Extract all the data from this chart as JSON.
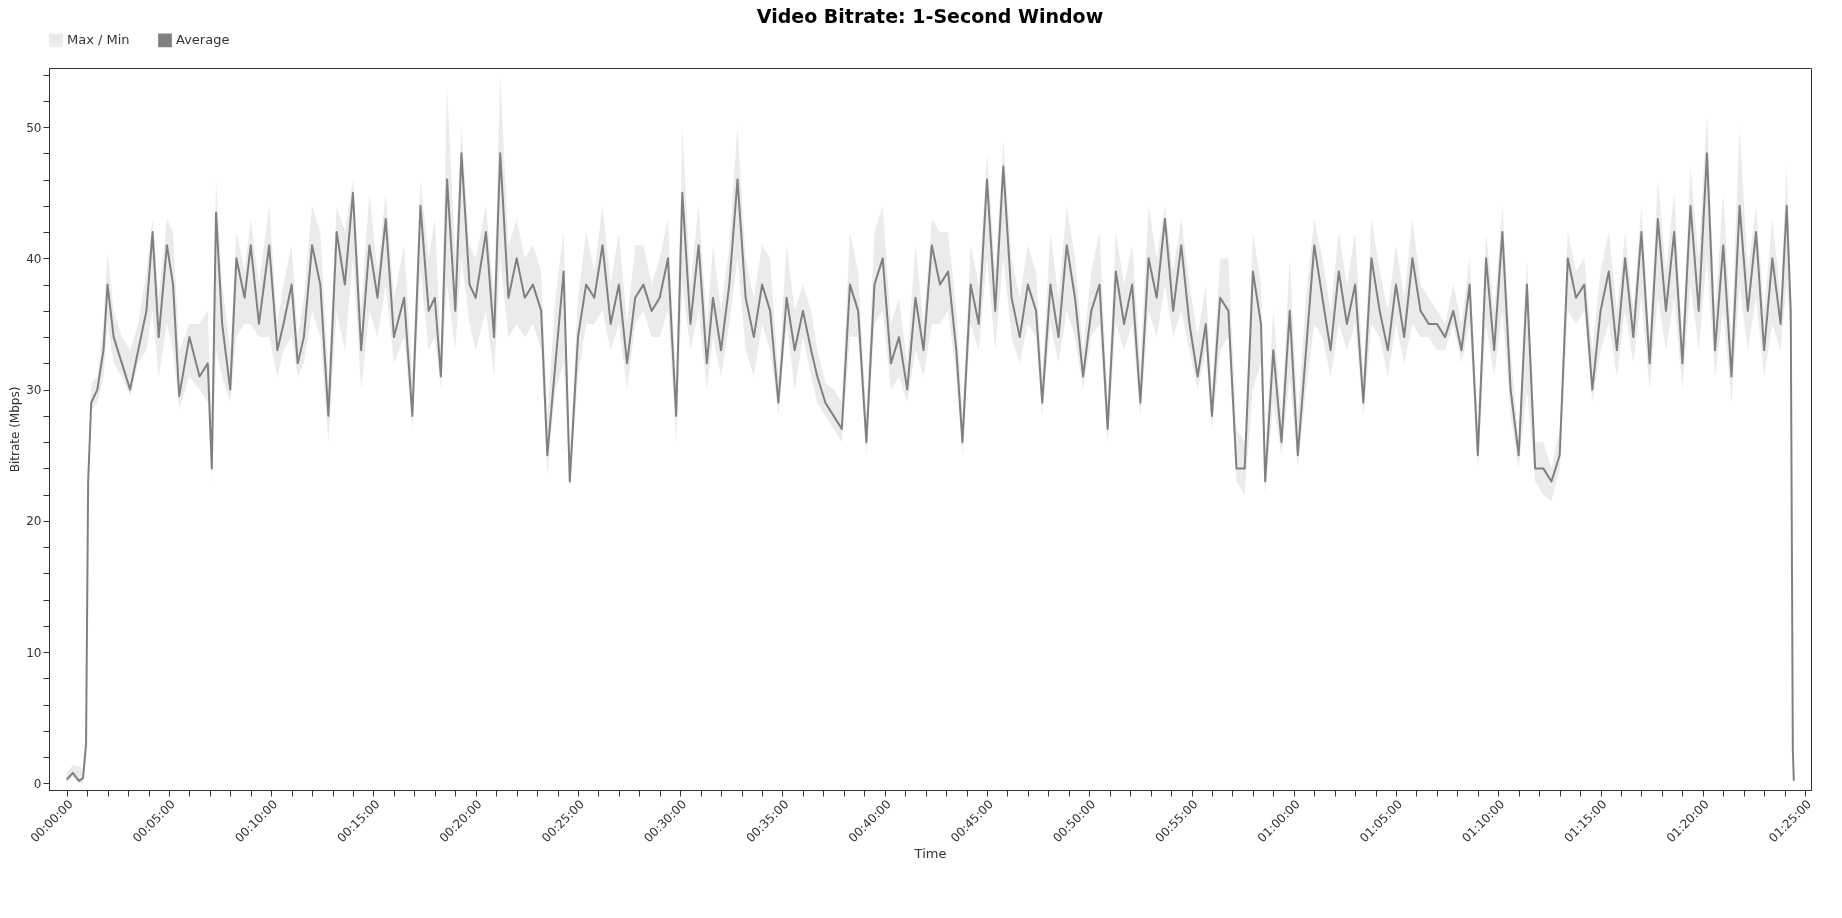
{
  "chart_data": {
    "type": "line",
    "title": "Video Bitrate: 1-Second Window",
    "xlabel": "Time",
    "ylabel": "Bitrate (Mbps)",
    "legend": "top left",
    "grid": false,
    "marker": "none",
    "line_style": "solid",
    "x": [
      0,
      0.005,
      0.01,
      0.0133,
      0.0158,
      0.0175,
      0.02,
      0.025,
      0.03,
      0.0333,
      0.0383,
      0.045,
      0.0517,
      0.0583,
      0.065,
      0.07,
      0.075,
      0.0817,
      0.0867,
      0.0917,
      0.1,
      0.1083,
      0.115,
      0.1183,
      0.1217,
      0.1267,
      0.1333,
      0.1383,
      0.145,
      0.15,
      0.1567,
      0.165,
      0.1717,
      0.1767,
      0.1833,
      0.1883,
      0.1933,
      0.2,
      0.2067,
      0.2133,
      0.22,
      0.2267,
      0.2333,
      0.24,
      0.2467,
      0.2533,
      0.26,
      0.2667,
      0.275,
      0.2817,
      0.2883,
      0.295,
      0.3,
      0.305,
      0.31,
      0.3167,
      0.3217,
      0.3283,
      0.3333,
      0.3417,
      0.3483,
      0.3533,
      0.36,
      0.3667,
      0.3733,
      0.38,
      0.3867,
      0.3917,
      0.3983,
      0.405,
      0.41,
      0.4167,
      0.4233,
      0.43,
      0.4367,
      0.4433,
      0.45,
      0.4567,
      0.4633,
      0.47,
      0.4767,
      0.4833,
      0.49,
      0.4967,
      0.5017,
      0.5083,
      0.515,
      0.5217,
      0.5267,
      0.5333,
      0.54,
      0.5467,
      0.5533,
      0.56,
      0.5667,
      0.5733,
      0.58,
      0.5867,
      0.5933,
      0.6,
      0.6067,
      0.6117,
      0.6183,
      0.625,
      0.6317,
      0.6383,
      0.645,
      0.6517,
      0.6583,
      0.665,
      0.6717,
      0.6783,
      0.685,
      0.6917,
      0.6983,
      0.705,
      0.7117,
      0.7183,
      0.725,
      0.73,
      0.7367,
      0.7433,
      0.75,
      0.7567,
      0.7633,
      0.77,
      0.7767,
      0.7833,
      0.79,
      0.795,
      0.8017,
      0.8083,
      0.815,
      0.8217,
      0.8283,
      0.835,
      0.8417,
      0.8483,
      0.855,
      0.8617,
      0.8683,
      0.875,
      0.8817,
      0.8883,
      0.895,
      0.9017,
      0.9083,
      0.915,
      0.9217,
      0.9283,
      0.9333,
      0.94,
      0.9467,
      0.9533,
      0.96,
      0.9667,
      0.9733,
      0.9767,
      0.9833,
      0.99,
      0.9967,
      1.0033,
      1.01,
      1.0167,
      1.0233,
      1.03,
      1.0367,
      1.0433,
      1.05,
      1.0567,
      1.0633,
      1.07,
      1.0767,
      1.0833,
      1.09,
      1.0967,
      1.1033,
      1.11,
      1.1167,
      1.1233,
      1.13,
      1.1367,
      1.1433,
      1.15,
      1.1567,
      1.1633,
      1.17,
      1.1767,
      1.1833,
      1.19,
      1.1967,
      1.2033,
      1.21,
      1.2167,
      1.2233,
      1.23,
      1.2367,
      1.2433,
      1.25,
      1.2567,
      1.2633,
      1.27,
      1.2767,
      1.2833,
      1.29,
      1.2967,
      1.3033,
      1.31,
      1.3167,
      1.3233,
      1.33,
      1.3367,
      1.3433,
      1.35,
      1.3567,
      1.3633,
      1.37,
      1.3767,
      1.3833,
      1.39,
      1.3967,
      1.4017,
      1.405,
      1.4067,
      1.4075
    ],
    "series": [
      {
        "name": "Average",
        "color": "#808080",
        "lower": [
          0,
          0.5,
          0,
          0,
          2,
          22,
          28.5,
          29,
          31,
          35,
          32,
          31,
          29.5,
          32,
          33,
          36,
          31,
          35,
          33,
          28.5,
          31,
          30,
          29,
          23,
          33,
          31,
          29,
          34,
          35,
          35,
          34,
          34,
          31,
          33,
          34,
          31,
          32,
          36,
          34,
          26,
          36,
          33,
          40,
          30,
          36,
          34,
          38,
          32,
          34,
          27,
          39,
          33,
          34,
          30,
          38,
          33,
          40,
          35,
          33,
          36,
          31,
          40,
          34,
          35,
          34,
          35,
          33,
          23.5,
          30,
          32,
          22.5,
          31,
          35,
          35,
          36,
          33,
          35,
          30,
          35,
          36,
          34,
          34,
          36,
          26,
          38,
          33,
          36,
          30,
          34,
          31,
          35,
          40,
          33,
          31,
          35,
          33,
          28,
          35,
          30,
          34,
          31,
          29,
          28,
          27,
          26,
          34,
          34,
          25,
          35,
          36,
          30,
          31,
          29,
          33,
          31,
          35,
          35,
          36,
          31,
          25,
          35,
          33,
          40,
          33,
          40,
          34,
          32,
          35,
          34,
          28,
          35,
          32,
          36,
          34,
          30,
          34,
          35,
          26,
          35,
          33,
          35,
          28,
          36,
          34,
          38,
          34,
          36,
          33,
          30,
          33,
          27,
          33,
          34,
          23,
          22,
          30,
          32,
          22,
          29,
          25,
          31,
          24,
          30,
          35,
          34,
          31,
          35,
          33,
          35,
          28,
          35,
          34,
          31,
          35,
          32,
          35,
          34,
          34,
          33,
          33,
          35,
          32,
          35,
          24,
          35,
          31,
          36,
          28,
          24,
          30,
          23,
          22,
          21.5,
          24,
          36,
          35,
          36,
          29,
          33,
          35,
          31,
          36,
          32,
          37,
          30,
          37,
          33,
          37,
          30,
          38,
          33,
          40,
          31,
          36,
          29,
          38,
          33,
          37,
          31,
          35,
          33,
          38,
          34,
          2,
          0
        ],
        "upper": [
          0.8,
          1.4,
          1.3,
          1,
          3.5,
          24,
          30.5,
          31,
          35,
          40.5,
          36,
          34,
          33,
          35,
          39,
          43,
          37,
          43,
          42,
          33,
          35,
          35,
          36,
          27,
          46,
          38,
          33,
          42,
          39,
          43,
          38,
          44,
          35,
          38,
          41,
          34,
          37,
          44,
          42,
          31,
          44,
          42,
          46,
          36,
          45,
          39,
          45,
          37,
          41,
          31,
          46,
          40,
          43,
          33,
          53,
          40,
          50,
          41,
          40,
          44,
          37,
          54,
          41,
          43,
          40,
          41,
          39,
          28,
          37,
          42,
          25,
          37,
          42,
          39,
          44,
          38,
          42,
          35,
          41,
          41,
          38,
          40,
          43,
          30,
          50,
          38,
          44,
          35,
          41,
          36,
          41,
          50,
          40,
          37,
          41,
          40,
          31,
          41,
          36,
          38,
          36,
          33,
          30.5,
          30,
          29,
          42,
          39,
          28,
          42,
          44,
          35,
          37,
          32,
          41,
          35,
          43,
          42,
          42,
          36,
          28,
          41,
          38,
          48,
          39,
          49,
          40,
          37,
          41,
          39,
          31,
          42,
          37,
          44,
          40,
          33,
          39,
          42,
          29,
          42,
          38,
          41,
          32,
          44,
          40,
          44,
          39,
          43,
          38,
          34,
          38,
          30,
          40,
          40,
          27,
          26,
          42,
          38,
          25,
          36,
          28,
          40,
          28,
          37,
          43,
          40,
          36,
          42,
          38,
          42,
          31,
          43,
          39,
          36,
          41,
          37,
          43,
          38,
          37,
          36,
          35,
          38,
          35,
          40,
          27,
          42,
          36,
          44,
          33,
          26,
          40,
          26,
          26,
          24,
          27,
          42,
          39,
          40,
          33,
          39,
          42,
          36,
          42,
          36,
          44,
          34,
          46,
          39,
          45,
          34,
          47,
          40,
          51,
          36,
          45,
          34,
          50,
          39,
          44,
          36,
          43,
          37,
          47,
          38,
          3,
          0.5
        ],
        "values": [
          0.3,
          0.8,
          0.2,
          0.4,
          3,
          23,
          29,
          30,
          33,
          38,
          34,
          32,
          30,
          33,
          36,
          42,
          34,
          41,
          38,
          29.5,
          34,
          31,
          32,
          24,
          43.5,
          35,
          30,
          40,
          37,
          41,
          35,
          41,
          33,
          35,
          38,
          32,
          34,
          41,
          38,
          28,
          42,
          38,
          45,
          33,
          41,
          37,
          43,
          34,
          37,
          28,
          44,
          36,
          37,
          31,
          46,
          36,
          48,
          38,
          37,
          42,
          34,
          48,
          37,
          40,
          37,
          38,
          36,
          25,
          32,
          39,
          23,
          34,
          38,
          37,
          41,
          35,
          38,
          32,
          37,
          38,
          36,
          37,
          40,
          28,
          45,
          35,
          41,
          32,
          37,
          33,
          38,
          46,
          37,
          34,
          38,
          36,
          29,
          37,
          33,
          36,
          33,
          31,
          29,
          28,
          27,
          38,
          36,
          26,
          38,
          40,
          32,
          34,
          30,
          37,
          33,
          41,
          38,
          39,
          33,
          26,
          38,
          35,
          46,
          36,
          47,
          37,
          34,
          38,
          36,
          29,
          38,
          34,
          41,
          37,
          31,
          36,
          38,
          27,
          39,
          35,
          38,
          29,
          40,
          37,
          43,
          36,
          41,
          35,
          31,
          35,
          28,
          37,
          36,
          24,
          24,
          39,
          35,
          23,
          33,
          26,
          36,
          25,
          33,
          41,
          37,
          33,
          39,
          35,
          38,
          29,
          40,
          36,
          33,
          38,
          34,
          40,
          36,
          35,
          35,
          34,
          36,
          33,
          38,
          25,
          40,
          33,
          42,
          30,
          25,
          38,
          24,
          24,
          23,
          25,
          40,
          37,
          38,
          30,
          36,
          39,
          33,
          40,
          34,
          42,
          32,
          43,
          36,
          42,
          32,
          44,
          36,
          48,
          33,
          41,
          31,
          44,
          36,
          42,
          33,
          40,
          35,
          44,
          36,
          2.5,
          0.2
        ]
      }
    ],
    "annotations": [
      "Max / Min"
    ],
    "xlim": [
      -0.0144,
      1.4215
    ],
    "ylim": [
      -0.5,
      54.5
    ],
    "xticks": [
      {
        "value": 0,
        "label": "00:00:00"
      },
      {
        "value": 0.0167,
        "label": null
      },
      {
        "value": 0.0333,
        "label": null
      },
      {
        "value": 0.05,
        "label": null
      },
      {
        "value": 0.0667,
        "label": null
      },
      {
        "value": 0.0833,
        "label": "00:05:00"
      },
      {
        "value": 0.1,
        "label": null
      },
      {
        "value": 0.1167,
        "label": null
      },
      {
        "value": 0.1333,
        "label": null
      },
      {
        "value": 0.15,
        "label": null
      },
      {
        "value": 0.1667,
        "label": "00:10:00"
      },
      {
        "value": 0.1833,
        "label": null
      },
      {
        "value": 0.2,
        "label": null
      },
      {
        "value": 0.2167,
        "label": null
      },
      {
        "value": 0.2333,
        "label": null
      },
      {
        "value": 0.25,
        "label": "00:15:00"
      },
      {
        "value": 0.2667,
        "label": null
      },
      {
        "value": 0.2833,
        "label": null
      },
      {
        "value": 0.3,
        "label": null
      },
      {
        "value": 0.3167,
        "label": null
      },
      {
        "value": 0.3333,
        "label": "00:20:00"
      },
      {
        "value": 0.35,
        "label": null
      },
      {
        "value": 0.3667,
        "label": null
      },
      {
        "value": 0.3833,
        "label": null
      },
      {
        "value": 0.4,
        "label": null
      },
      {
        "value": 0.4167,
        "label": "00:25:00"
      },
      {
        "value": 0.4333,
        "label": null
      },
      {
        "value": 0.45,
        "label": null
      },
      {
        "value": 0.4667,
        "label": null
      },
      {
        "value": 0.4833,
        "label": null
      },
      {
        "value": 0.5,
        "label": "00:30:00"
      },
      {
        "value": 0.5167,
        "label": null
      },
      {
        "value": 0.5333,
        "label": null
      },
      {
        "value": 0.55,
        "label": null
      },
      {
        "value": 0.5667,
        "label": null
      },
      {
        "value": 0.5833,
        "label": "00:35:00"
      },
      {
        "value": 0.6,
        "label": null
      },
      {
        "value": 0.6167,
        "label": null
      },
      {
        "value": 0.6333,
        "label": null
      },
      {
        "value": 0.65,
        "label": null
      },
      {
        "value": 0.6667,
        "label": "00:40:00"
      },
      {
        "value": 0.6833,
        "label": null
      },
      {
        "value": 0.7,
        "label": null
      },
      {
        "value": 0.7167,
        "label": null
      },
      {
        "value": 0.7333,
        "label": null
      },
      {
        "value": 0.75,
        "label": "00:45:00"
      },
      {
        "value": 0.7667,
        "label": null
      },
      {
        "value": 0.7833,
        "label": null
      },
      {
        "value": 0.8,
        "label": null
      },
      {
        "value": 0.8167,
        "label": null
      },
      {
        "value": 0.8333,
        "label": "00:50:00"
      },
      {
        "value": 0.85,
        "label": null
      },
      {
        "value": 0.8667,
        "label": null
      },
      {
        "value": 0.8833,
        "label": null
      },
      {
        "value": 0.9,
        "label": null
      },
      {
        "value": 0.9167,
        "label": "00:55:00"
      },
      {
        "value": 0.9333,
        "label": null
      },
      {
        "value": 0.95,
        "label": null
      },
      {
        "value": 0.9667,
        "label": null
      },
      {
        "value": 0.9833,
        "label": null
      },
      {
        "value": 1,
        "label": "01:00:00"
      },
      {
        "value": 1.0167,
        "label": null
      },
      {
        "value": 1.0333,
        "label": null
      },
      {
        "value": 1.05,
        "label": null
      },
      {
        "value": 1.0667,
        "label": null
      },
      {
        "value": 1.0833,
        "label": "01:05:00"
      },
      {
        "value": 1.1,
        "label": null
      },
      {
        "value": 1.1167,
        "label": null
      },
      {
        "value": 1.1333,
        "label": null
      },
      {
        "value": 1.15,
        "label": null
      },
      {
        "value": 1.1667,
        "label": "01:10:00"
      },
      {
        "value": 1.1833,
        "label": null
      },
      {
        "value": 1.2,
        "label": null
      },
      {
        "value": 1.2167,
        "label": null
      },
      {
        "value": 1.2333,
        "label": null
      },
      {
        "value": 1.25,
        "label": "01:15:00"
      },
      {
        "value": 1.2667,
        "label": null
      },
      {
        "value": 1.2833,
        "label": null
      },
      {
        "value": 1.3,
        "label": null
      },
      {
        "value": 1.3167,
        "label": null
      },
      {
        "value": 1.3333,
        "label": "01:20:00"
      },
      {
        "value": 1.35,
        "label": null
      },
      {
        "value": 1.3667,
        "label": null
      },
      {
        "value": 1.3833,
        "label": null
      },
      {
        "value": 1.4,
        "label": null
      },
      {
        "value": 1.4167,
        "label": "01:25:00"
      }
    ],
    "yticks": [
      0,
      {
        "value": 2,
        "label": null
      },
      {
        "value": 4,
        "label": null
      },
      {
        "value": 6,
        "label": null
      },
      {
        "value": 8,
        "label": null
      },
      10,
      {
        "value": 12,
        "label": null
      },
      {
        "value": 14,
        "label": null
      },
      {
        "value": 16,
        "label": null
      },
      {
        "value": 18,
        "label": null
      },
      20,
      {
        "value": 22,
        "label": null
      },
      {
        "value": 24,
        "label": null
      },
      {
        "value": 26,
        "label": null
      },
      {
        "value": 28,
        "label": null
      },
      30,
      {
        "value": 32,
        "label": null
      },
      {
        "value": 34,
        "label": null
      },
      {
        "value": 36,
        "label": null
      },
      {
        "value": 38,
        "label": null
      },
      40,
      {
        "value": 42,
        "label": null
      },
      {
        "value": 44,
        "label": null
      },
      {
        "value": 46,
        "label": null
      },
      {
        "value": 48,
        "label": null
      },
      50,
      {
        "value": 52,
        "label": null
      },
      {
        "value": 54,
        "label": null
      }
    ]
  }
}
